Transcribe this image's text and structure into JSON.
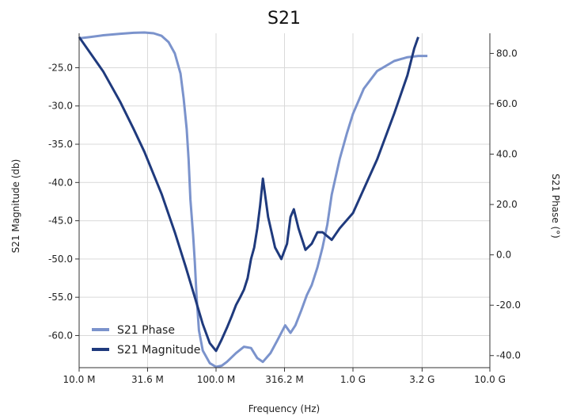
{
  "chart_data": {
    "type": "line",
    "title": "S21",
    "xlabel": "Frequency (Hz)",
    "ylabel_left": "S21 Magnitude (db)",
    "ylabel_right": "S21 Phase (°)",
    "x_scale": "log",
    "xlim": [
      10000000,
      10000000000
    ],
    "ylim_left": [
      -64.2,
      -20.5
    ],
    "ylim_right": [
      -44.8,
      88.0
    ],
    "x_ticks": [
      {
        "value": 10000000,
        "label": "10.0 M"
      },
      {
        "value": 31600000,
        "label": "31.6 M"
      },
      {
        "value": 100000000,
        "label": "100.0 M"
      },
      {
        "value": 316200000,
        "label": "316.2 M"
      },
      {
        "value": 1000000000,
        "label": "1.0 G"
      },
      {
        "value": 3200000000,
        "label": "3.2 G"
      },
      {
        "value": 10000000000,
        "label": "10.0 G"
      }
    ],
    "y_left_ticks": [
      {
        "value": -25,
        "label": "-25.0"
      },
      {
        "value": -30,
        "label": "-30.0"
      },
      {
        "value": -35,
        "label": "-35.0"
      },
      {
        "value": -40,
        "label": "-40.0"
      },
      {
        "value": -45,
        "label": "-45.0"
      },
      {
        "value": -50,
        "label": "-50.0"
      },
      {
        "value": -55,
        "label": "-55.0"
      },
      {
        "value": -60,
        "label": "-60.0"
      }
    ],
    "y_right_ticks": [
      {
        "value": 80,
        "label": "80.0"
      },
      {
        "value": 60,
        "label": "60.0"
      },
      {
        "value": 40,
        "label": "40.0"
      },
      {
        "value": 20,
        "label": "20.0"
      },
      {
        "value": 0,
        "label": "0.0"
      },
      {
        "value": -20,
        "label": "-20.0"
      },
      {
        "value": -40,
        "label": "-40.0"
      }
    ],
    "grid": true,
    "legend_position": "bottom-left",
    "series": [
      {
        "name": "S21 Phase",
        "axis": "right",
        "color": "#7b93cc",
        "x": [
          10000000,
          12000000,
          15000000,
          20000000,
          25000000,
          30000000,
          35000000,
          40000000,
          45000000,
          50000000,
          55000000,
          58000000,
          61000000,
          63000000,
          65000000,
          68000000,
          70000000,
          72000000,
          75000000,
          80000000,
          90000000,
          100000000,
          110000000,
          120000000,
          140000000,
          160000000,
          180000000,
          200000000,
          220000000,
          250000000,
          280000000,
          320000000,
          350000000,
          380000000,
          420000000,
          460000000,
          500000000,
          550000000,
          600000000,
          650000000,
          700000000,
          800000000,
          900000000,
          1000000000,
          1200000000,
          1500000000,
          2000000000,
          2500000000,
          3000000000,
          3500000000
        ],
        "y": [
          86.0,
          86.5,
          87.2,
          87.8,
          88.2,
          88.3,
          88.0,
          87.0,
          84.5,
          80.0,
          72.0,
          62.0,
          50.0,
          38.0,
          22.0,
          8.0,
          -3.0,
          -16.0,
          -30.0,
          -38.0,
          -43.0,
          -44.5,
          -44.0,
          -42.5,
          -39.0,
          -36.5,
          -37.0,
          -41.0,
          -42.5,
          -39.0,
          -34.0,
          -28.0,
          -31.0,
          -28.0,
          -22.0,
          -16.0,
          -12.0,
          -5.0,
          3.0,
          12.0,
          24.0,
          38.0,
          48.0,
          56.0,
          66.0,
          73.0,
          77.0,
          78.5,
          79.0,
          79.0
        ]
      },
      {
        "name": "S21 Magnitude",
        "axis": "left",
        "color": "#1f3a7d",
        "x": [
          10000000,
          15000000,
          20000000,
          25000000,
          30000000,
          40000000,
          50000000,
          60000000,
          70000000,
          80000000,
          90000000,
          100000000,
          110000000,
          120000000,
          130000000,
          140000000,
          150000000,
          160000000,
          170000000,
          180000000,
          190000000,
          200000000,
          210000000,
          220000000,
          240000000,
          270000000,
          300000000,
          330000000,
          350000000,
          370000000,
          400000000,
          450000000,
          500000000,
          550000000,
          600000000,
          700000000,
          800000000,
          1000000000,
          1500000000,
          2000000000,
          2500000000,
          2800000000,
          3000000000
        ],
        "y": [
          -21.0,
          -25.5,
          -29.5,
          -33.0,
          -36.0,
          -41.5,
          -46.5,
          -51.0,
          -55.0,
          -58.5,
          -61.0,
          -62.0,
          -60.5,
          -59.0,
          -57.5,
          -56.0,
          -55.0,
          -54.0,
          -52.5,
          -50.0,
          -48.5,
          -46.0,
          -43.0,
          -39.5,
          -44.5,
          -48.5,
          -50.0,
          -48.0,
          -44.5,
          -43.5,
          -46.0,
          -48.8,
          -48.0,
          -46.5,
          -46.5,
          -47.5,
          -46.0,
          -44.0,
          -37.0,
          -31.0,
          -26.0,
          -22.5,
          -21.0
        ]
      }
    ]
  }
}
